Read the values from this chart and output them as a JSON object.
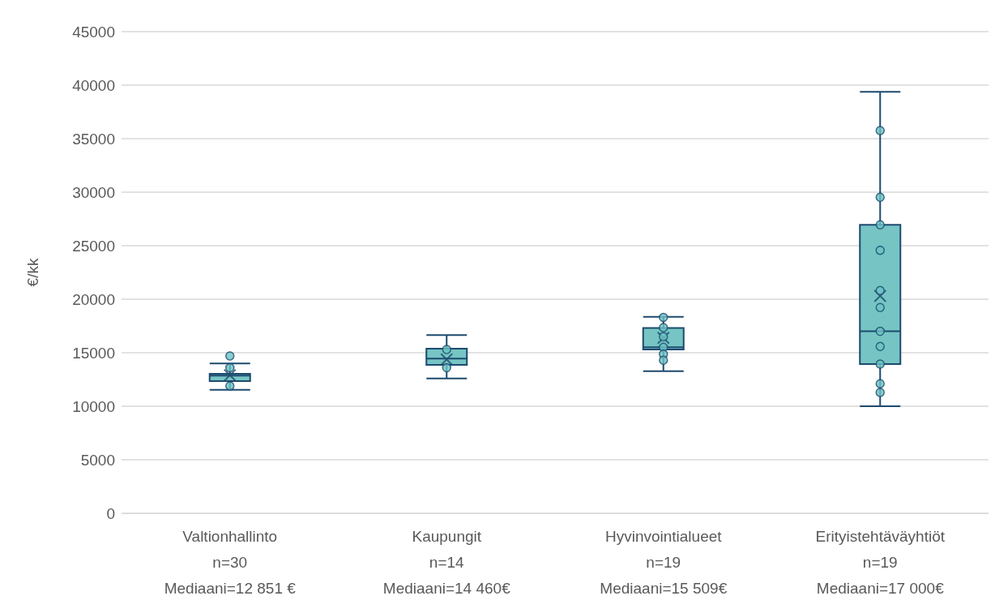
{
  "chart_data": {
    "type": "box",
    "ylabel": "€/kk",
    "categories": [
      "Valtionhallinto\nn=30\nMediaani=12 851 €",
      "Kaupungit\nn=14\nMediaani=14 460€",
      "Hyvinvointialueet\nn=19\nMediaani=15 509€",
      "Erityistehtäväyhtiöt\nn=19\nMediaani=17 000€"
    ],
    "boxes": [
      {
        "low": 11540,
        "q1": 12350,
        "median": 12851,
        "q3": 13030,
        "high": 14000,
        "mean": 12900
      },
      {
        "low": 12600,
        "q1": 13860,
        "median": 14460,
        "q3": 15380,
        "high": 16640,
        "mean": 14370
      },
      {
        "low": 13280,
        "q1": 15300,
        "median": 15509,
        "q3": 17320,
        "high": 18360,
        "mean": 16380
      },
      {
        "low": 10000,
        "q1": 13940,
        "median": 17000,
        "q3": 26950,
        "high": 39370,
        "mean": 20300
      }
    ],
    "color": "#76c5c4",
    "series": [
      {
        "type": "scatter",
        "color": "#6cc3c3",
        "x": [
          "Valtionhallinto\nn=30\nMediaani=12 851 €",
          "Valtionhallinto\nn=30\nMediaani=12 851 €",
          "Valtionhallinto\nn=30\nMediaani=12 851 €",
          "Kaupungit\nn=14\nMediaani=14 460€",
          "Kaupungit\nn=14\nMediaani=14 460€",
          "Hyvinvointialueet\nn=19\nMediaani=15 509€",
          "Hyvinvointialueet\nn=19\nMediaani=15 509€",
          "Hyvinvointialueet\nn=19\nMediaani=15 509€",
          "Hyvinvointialueet\nn=19\nMediaani=15 509€",
          "Hyvinvointialueet\nn=19\nMediaani=15 509€",
          "Hyvinvointialueet\nn=19\nMediaani=15 509€",
          "Erityistehtäväyhtiöt\nn=19\nMediaani=17 000€",
          "Erityistehtäväyhtiöt\nn=19\nMediaani=17 000€",
          "Erityistehtäväyhtiöt\nn=19\nMediaani=17 000€",
          "Erityistehtäväyhtiöt\nn=19\nMediaani=17 000€",
          "Erityistehtäväyhtiöt\nn=19\nMediaani=17 000€",
          "Erityistehtäväyhtiöt\nn=19\nMediaani=17 000€",
          "Erityistehtäväyhtiöt\nn=19\nMediaani=17 000€",
          "Erityistehtäväyhtiöt\nn=19\nMediaani=17 000€",
          "Erityistehtäväyhtiöt\nn=19\nMediaani=17 000€",
          "Erityistehtäväyhtiöt\nn=19\nMediaani=17 000€",
          "Erityistehtäväyhtiöt\nn=19\nMediaani=17 000€"
        ],
        "values": [
          14700,
          13600,
          11900,
          15300,
          13600,
          18300,
          17350,
          16500,
          15500,
          14870,
          14300,
          35760,
          29520,
          26950,
          24570,
          20810,
          19220,
          17000,
          15580,
          13940,
          12100,
          11290
        ]
      }
    ],
    "marker": "circle",
    "ylim": [
      0,
      45000
    ],
    "yticks": [
      0,
      5000,
      10000,
      15000,
      20000,
      25000,
      30000,
      35000,
      40000,
      45000
    ],
    "grid": "y"
  }
}
